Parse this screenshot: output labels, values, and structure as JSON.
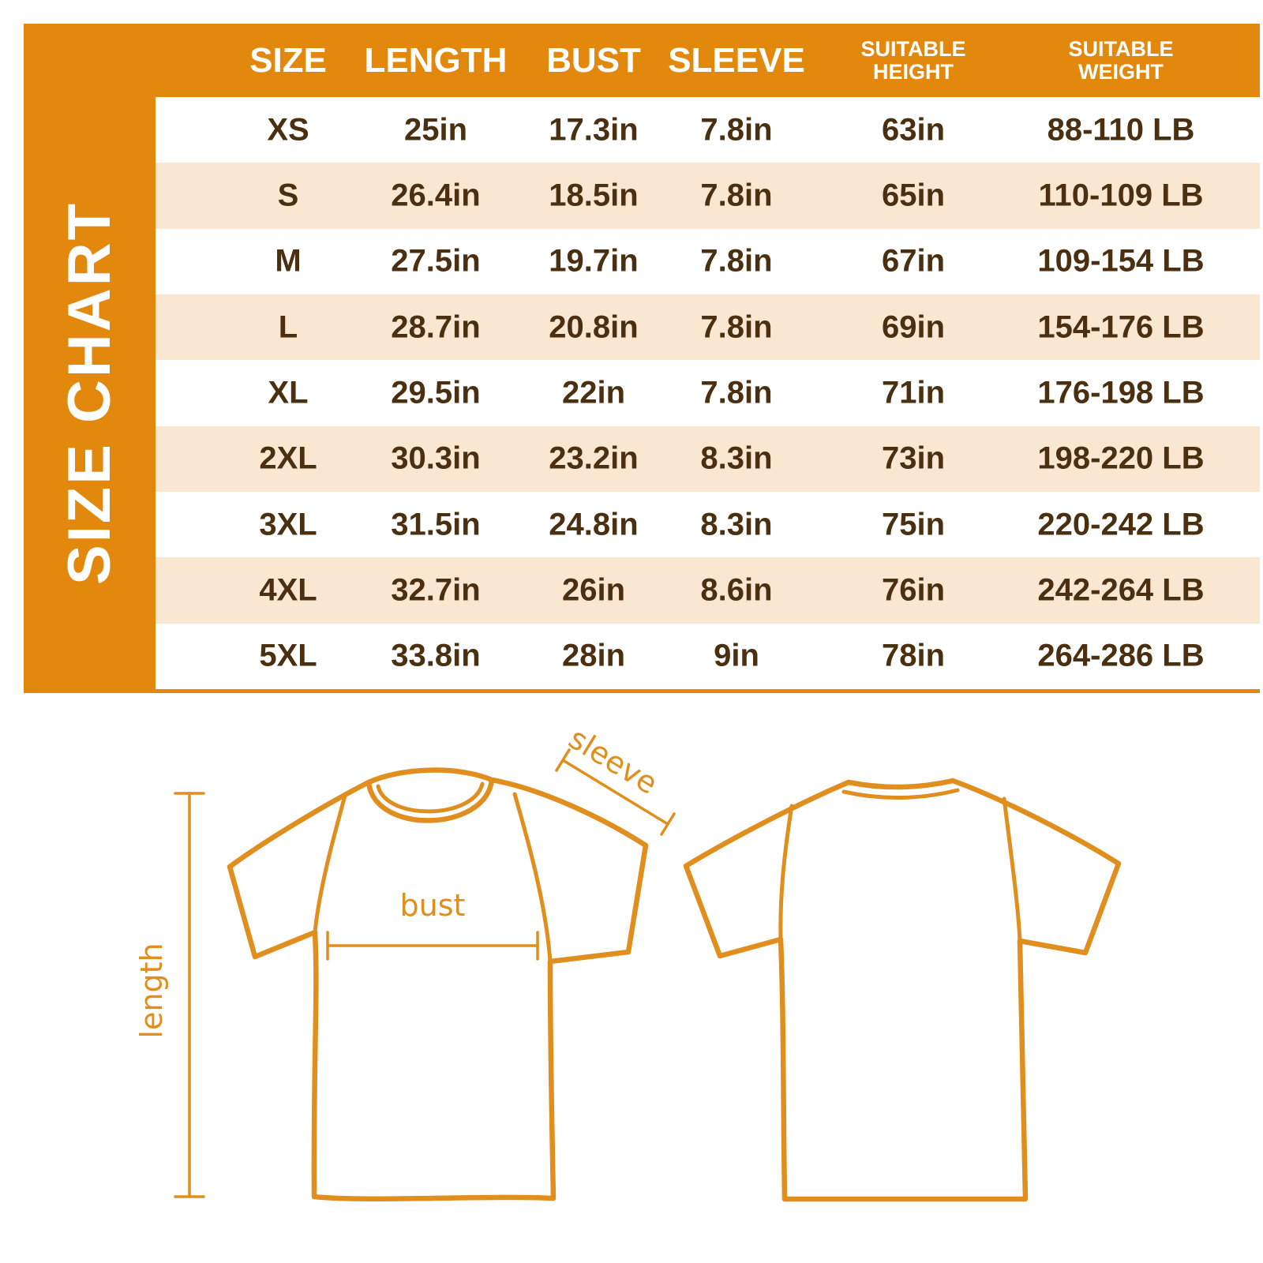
{
  "chart_data": {
    "type": "table",
    "title": "SIZE CHART",
    "headers": [
      "SIZE",
      "LENGTH",
      "BUST",
      "SLEEVE",
      "SUITABLE HEIGHT",
      "SUITABLE WEIGHT"
    ],
    "rows": [
      [
        "XS",
        "25in",
        "17.3in",
        "7.8in",
        "63in",
        "88-110 LB"
      ],
      [
        "S",
        "26.4in",
        "18.5in",
        "7.8in",
        "65in",
        "110-109 LB"
      ],
      [
        "M",
        "27.5in",
        "19.7in",
        "7.8in",
        "67in",
        "109-154 LB"
      ],
      [
        "L",
        "28.7in",
        "20.8in",
        "7.8in",
        "69in",
        "154-176 LB"
      ],
      [
        "XL",
        "29.5in",
        "22in",
        "7.8in",
        "71in",
        "176-198 LB"
      ],
      [
        "2XL",
        "30.3in",
        "23.2in",
        "8.3in",
        "73in",
        "198-220 LB"
      ],
      [
        "3XL",
        "31.5in",
        "24.8in",
        "8.3in",
        "75in",
        "220-242 LB"
      ],
      [
        "4XL",
        "32.7in",
        "26in",
        "8.6in",
        "76in",
        "242-264 LB"
      ],
      [
        "5XL",
        "33.8in",
        "28in",
        "9in",
        "78in",
        "264-286 LB"
      ]
    ],
    "legend_position": "none",
    "grid": false
  },
  "diagram": {
    "sleeve_label": "sleeve",
    "bust_label": "bust",
    "length_label": "length"
  },
  "colors": {
    "frame_orange": "#E2890D",
    "row_peach": "#FAE7D2",
    "row_white": "#FFFFFF",
    "text_brown": "#4A2F10",
    "header_text": "#FFFFFF",
    "diagram_orange": "#E08E1E"
  }
}
